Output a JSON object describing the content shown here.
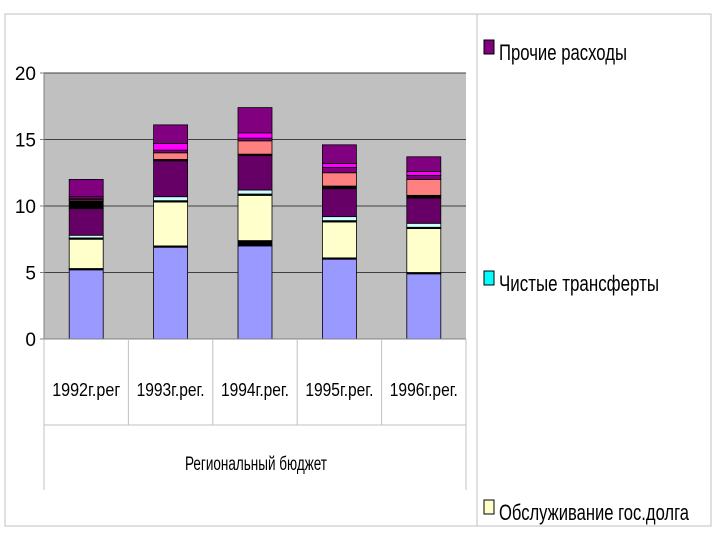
{
  "chart_data": {
    "type": "bar",
    "stacked": true,
    "y_ticks": [
      "0",
      "5",
      "10",
      "15",
      "20"
    ],
    "ylim": [
      0,
      20
    ],
    "grid": true,
    "legend_position": "right",
    "categories": [
      "1992г.рег",
      "1993г.рег.",
      "1994г.рег.",
      "1995г.рег.",
      "1996г.рег."
    ],
    "group_label": "Региональный бюджет",
    "legend": [
      {
        "label": "Прочие расходы",
        "color": "#800080"
      },
      {
        "label": "Чистые трансферты",
        "color": "#00ffff"
      },
      {
        "label": "Обслуживание гос.долга",
        "color": "#ffffcc"
      }
    ],
    "series": [
      {
        "color": "#9999ff",
        "values": [
          5.2,
          6.9,
          7.0,
          6.0,
          4.9
        ]
      },
      {
        "color": "#000000",
        "values": [
          0.1,
          0.1,
          0.4,
          0.1,
          0.1
        ]
      },
      {
        "color": "#ffffcc",
        "values": [
          2.2,
          3.3,
          3.4,
          2.7,
          3.3
        ]
      },
      {
        "color": "#000000",
        "values": [
          0.1,
          0.1,
          0.1,
          0.1,
          0.1
        ]
      },
      {
        "color": "#ccffff",
        "values": [
          0.2,
          0.3,
          0.3,
          0.3,
          0.3
        ]
      },
      {
        "color": "#660066",
        "values": [
          2.0,
          2.7,
          2.6,
          2.1,
          1.9
        ]
      },
      {
        "color": "#000000",
        "values": [
          0.6,
          0.1,
          0.1,
          0.2,
          0.2
        ]
      },
      {
        "color": "#ff8080",
        "values": [
          0.1,
          0.5,
          1.0,
          1.0,
          1.2
        ]
      },
      {
        "color": "#800080",
        "values": [
          0.1,
          0.2,
          0.2,
          0.4,
          0.3
        ]
      },
      {
        "color": "#ff00ff",
        "values": [
          0.1,
          0.5,
          0.4,
          0.3,
          0.3
        ]
      },
      {
        "color": "#800080",
        "values": [
          1.3,
          1.4,
          1.9,
          1.4,
          1.1
        ]
      }
    ]
  }
}
